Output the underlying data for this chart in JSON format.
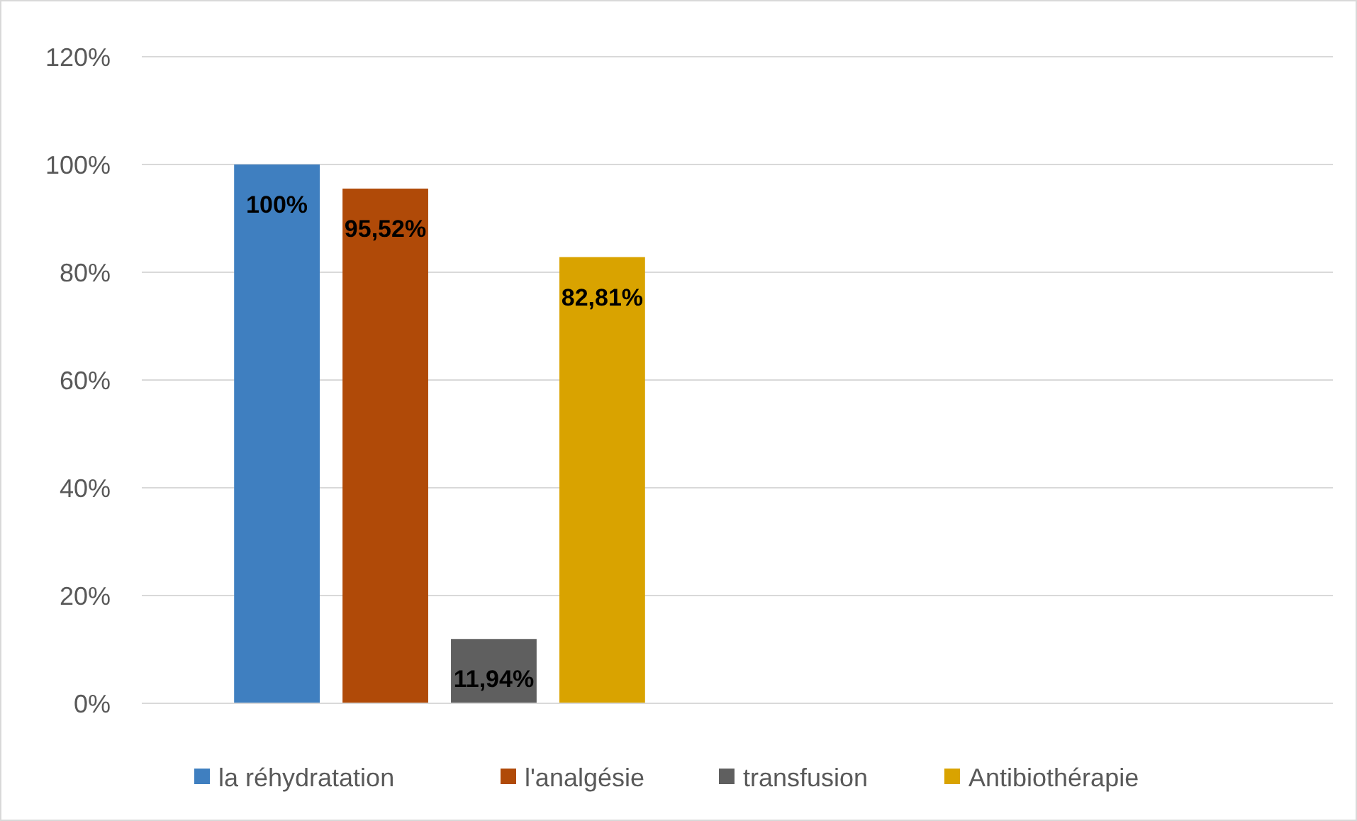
{
  "chart_data": {
    "type": "bar",
    "categories": [
      null,
      null
    ],
    "series": [
      {
        "name": "la réhydratation",
        "color": "#3f7fc0",
        "values": [
          100,
          null
        ],
        "value_labels": [
          "100%",
          null
        ]
      },
      {
        "name": "l'analgésie",
        "color": "#b04a08",
        "values": [
          95.52,
          null
        ],
        "value_labels": [
          "95,52%",
          null
        ]
      },
      {
        "name": "transfusion",
        "color": "#5f5f5f",
        "values": [
          11.94,
          null
        ],
        "value_labels": [
          "11,94%",
          null
        ]
      },
      {
        "name": "Antibiothérapie",
        "color": "#d9a300",
        "values": [
          82.81,
          null
        ],
        "value_labels": [
          "82,81%",
          null
        ]
      }
    ],
    "ylim": [
      0,
      120
    ],
    "yticks": [
      {
        "value": 0,
        "label": "0%"
      },
      {
        "value": 20,
        "label": "20%"
      },
      {
        "value": 40,
        "label": "40%"
      },
      {
        "value": 60,
        "label": "60%"
      },
      {
        "value": 80,
        "label": "80%"
      },
      {
        "value": 100,
        "label": "100%"
      },
      {
        "value": 120,
        "label": "120%"
      }
    ],
    "grid": "y",
    "legend": "bottom"
  }
}
